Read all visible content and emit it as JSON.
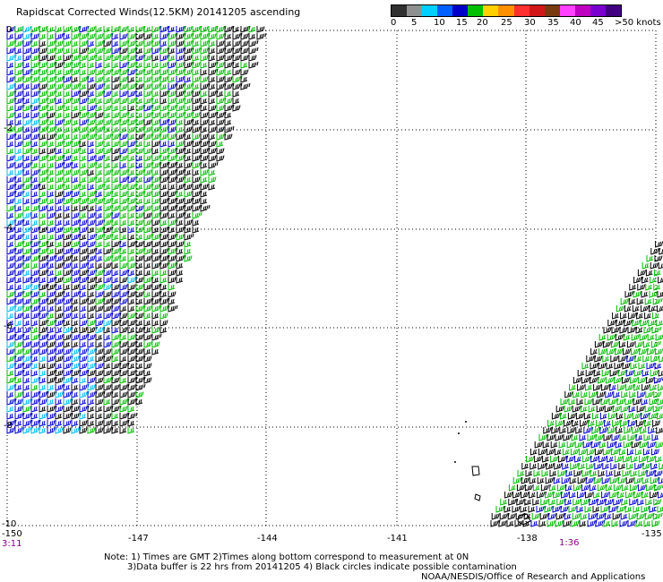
{
  "title": "Rapidscat Corrected Winds(12.5KM) 20141205 ascending",
  "colorbar": {
    "labels": [
      "0",
      "5",
      "10",
      "15",
      "20",
      "25",
      "30",
      "35",
      "40",
      "45",
      ">50 knots"
    ],
    "colors": [
      "#303030",
      "#909090",
      "#00d0ff",
      "#0060ff",
      "#0000c8",
      "#00c000",
      "#ffd000",
      "#ff9000",
      "#ff3030",
      "#d01818",
      "#7a3a10",
      "#ff40ff",
      "#c000c0",
      "#7a00d0",
      "#400080"
    ]
  },
  "axes": {
    "lat_labels": [
      "0",
      "-2",
      "-4",
      "-6",
      "-8",
      "-10"
    ],
    "lon_labels": [
      "-150",
      "-147",
      "-144",
      "-141",
      "-138",
      "-135"
    ]
  },
  "times": {
    "left": "3:11",
    "right": "1:36"
  },
  "notes": [
    "Note: 1) Times are GMT 2)Times along bottom correspond to measurement at 0N",
    "3)Data buffer is 22 hrs from 20141205 4) Black circles indicate possible contamination",
    "NOAA/NESDIS/Office of Research and Applications"
  ],
  "wind_colors": {
    "black": "#000000",
    "blue": "#0000cc",
    "green": "#00bb00",
    "cyan": "#00bbee"
  }
}
